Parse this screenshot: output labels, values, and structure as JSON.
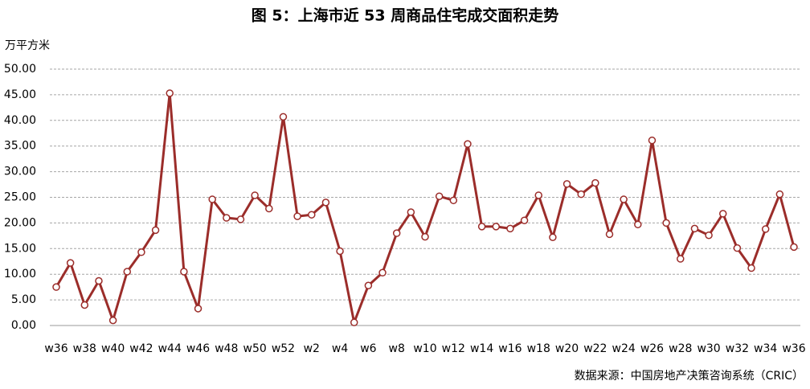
{
  "chart_data": {
    "type": "line",
    "title": "图 5：上海市近 53 周商品住宅成交面积走势",
    "y_label": "万平方米",
    "source": "数据来源：中国房地产决策咨询系统（CRIC）",
    "categories": [
      "w36",
      null,
      "w38",
      null,
      "w40",
      null,
      "w42",
      null,
      "w44",
      null,
      "w46",
      null,
      "w48",
      null,
      "w50",
      null,
      "w52",
      null,
      "w2",
      null,
      "w4",
      null,
      "w6",
      null,
      "w8",
      null,
      "w10",
      null,
      "w12",
      null,
      "w14",
      null,
      "w16",
      null,
      "w18",
      null,
      "w20",
      null,
      "w22",
      null,
      "w24",
      null,
      "w26",
      null,
      "w28",
      null,
      "w30",
      null,
      "w32",
      null,
      "w34",
      null,
      "w36"
    ],
    "values": [
      7.5,
      12.2,
      4.0,
      8.7,
      1.0,
      10.5,
      14.3,
      18.6,
      45.3,
      10.5,
      3.3,
      24.6,
      21.0,
      20.7,
      25.4,
      22.8,
      40.7,
      21.3,
      21.6,
      24.0,
      14.5,
      0.6,
      7.8,
      10.3,
      18.0,
      22.1,
      17.3,
      25.2,
      24.4,
      35.4,
      19.3,
      19.3,
      18.9,
      20.5,
      25.4,
      17.2,
      27.6,
      25.6,
      27.8,
      17.8,
      24.6,
      19.7,
      36.1,
      20.0,
      13.0,
      18.9,
      17.6,
      21.8,
      15.1,
      11.2,
      18.8,
      25.6,
      15.3
    ],
    "color": "#9b2d2a",
    "ylim": [
      0,
      50
    ],
    "yticks": [
      {
        "value": 0,
        "label": "0.00"
      },
      {
        "value": 5,
        "label": "5.00"
      },
      {
        "value": 10,
        "label": "10.00"
      },
      {
        "value": 15,
        "label": "15.00"
      },
      {
        "value": 20,
        "label": "20.00"
      },
      {
        "value": 25,
        "label": "25.00"
      },
      {
        "value": 30,
        "label": "30.00"
      },
      {
        "value": 35,
        "label": "35.00"
      },
      {
        "value": 40,
        "label": "40.00"
      },
      {
        "value": 45,
        "label": "45.00"
      },
      {
        "value": 50,
        "label": "50.00"
      }
    ],
    "grid": true
  }
}
